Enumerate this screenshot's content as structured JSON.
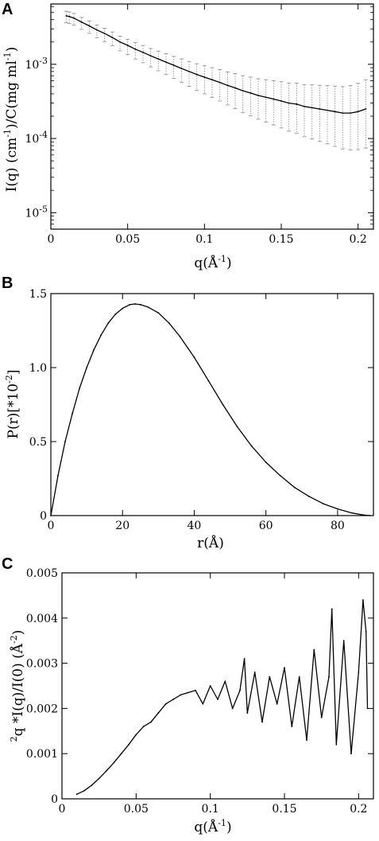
{
  "figure": {
    "panels": [
      {
        "letter": "A"
      },
      {
        "letter": "B"
      },
      {
        "letter": "C"
      }
    ]
  },
  "chart_data": [
    {
      "type": "scatter",
      "panel": "A",
      "y_scale": "log",
      "xlabel": {
        "main": "q(Å",
        "sup": "-1",
        "tail": ")"
      },
      "ylabel": {
        "p1": "I(q) (cm",
        "s1": "-1",
        "p2": ")/C(mg ml",
        "s2": "-1",
        "p3": ")"
      },
      "xlim": [
        0,
        0.21
      ],
      "ylim": [
        6e-06,
        0.0065
      ],
      "x_ticks": [
        0,
        0.05,
        0.1,
        0.15,
        0.2
      ],
      "x_tick_labels": [
        "0",
        "0.05",
        "0.1",
        "0.15",
        "0.2"
      ],
      "y_ticks": [
        1e-05,
        0.0001,
        0.001
      ],
      "y_tick_labels": [
        {
          "base": "10",
          "exp": "-5"
        },
        {
          "base": "10",
          "exp": "-4"
        },
        {
          "base": "10",
          "exp": "-3"
        }
      ],
      "series": [
        {
          "style": "line with dotted error bars",
          "error_bars": true,
          "x": [
            0.01,
            0.012,
            0.015,
            0.02,
            0.025,
            0.03,
            0.035,
            0.04,
            0.045,
            0.05,
            0.055,
            0.06,
            0.065,
            0.07,
            0.075,
            0.08,
            0.085,
            0.09,
            0.095,
            0.1,
            0.105,
            0.11,
            0.115,
            0.12,
            0.125,
            0.13,
            0.135,
            0.14,
            0.145,
            0.15,
            0.155,
            0.16,
            0.165,
            0.17,
            0.175,
            0.18,
            0.185,
            0.19,
            0.195,
            0.2,
            0.205
          ],
          "y": [
            0.0045,
            0.0044,
            0.0042,
            0.0037,
            0.0033,
            0.0029,
            0.0026,
            0.0023,
            0.002,
            0.0018,
            0.0016,
            0.00145,
            0.0013,
            0.00118,
            0.00107,
            0.00097,
            0.00088,
            0.0008,
            0.00073,
            0.00067,
            0.00062,
            0.00057,
            0.00052,
            0.00048,
            0.00044,
            0.00041,
            0.00038,
            0.00036,
            0.00034,
            0.00032,
            0.0003,
            0.00029,
            0.00027,
            0.00026,
            0.00025,
            0.00024,
            0.00023,
            0.00022,
            0.00022,
            0.00023,
            0.00025
          ]
        }
      ]
    },
    {
      "type": "line",
      "panel": "B",
      "xlabel": "r(Å)",
      "ylabel": {
        "p1": "P(r)[*10",
        "s1": "-2",
        "p2": "]"
      },
      "xlim": [
        0,
        90
      ],
      "ylim": [
        0,
        1.5
      ],
      "x_ticks": [
        0,
        20,
        40,
        60,
        80
      ],
      "x_tick_labels": [
        "0",
        "20",
        "40",
        "60",
        "80"
      ],
      "y_ticks": [
        0,
        0.5,
        1.0,
        1.5
      ],
      "y_tick_labels": [
        "0",
        "0.5",
        "1.0",
        "1.5"
      ],
      "series": [
        {
          "style": "line",
          "x": [
            0,
            2,
            4,
            6,
            8,
            10,
            12,
            14,
            16,
            18,
            20,
            22,
            23.5,
            25,
            27,
            30,
            33,
            36,
            40,
            44,
            48,
            52,
            56,
            60,
            64,
            68,
            72,
            76,
            80,
            84,
            87,
            89
          ],
          "y": [
            0,
            0.27,
            0.5,
            0.69,
            0.86,
            1.0,
            1.12,
            1.22,
            1.3,
            1.36,
            1.4,
            1.425,
            1.43,
            1.425,
            1.41,
            1.37,
            1.3,
            1.21,
            1.07,
            0.91,
            0.75,
            0.6,
            0.47,
            0.36,
            0.27,
            0.19,
            0.13,
            0.08,
            0.045,
            0.018,
            0.005,
            0
          ]
        }
      ]
    },
    {
      "type": "line",
      "panel": "C",
      "xlabel": {
        "main": "q(Å",
        "sup": "-1",
        "tail": ")"
      },
      "ylabel": {
        "s0": "2",
        "p1": "q *I(q)/I(0) (Å",
        "s1": "-2",
        "p2": ")"
      },
      "xlim": [
        0,
        0.21
      ],
      "ylim": [
        0,
        0.005
      ],
      "x_ticks": [
        0,
        0.05,
        0.1,
        0.15,
        0.2
      ],
      "x_tick_labels": [
        "0",
        "0.05",
        "0.1",
        "0.15",
        "0.2"
      ],
      "y_ticks": [
        0,
        0.001,
        0.002,
        0.003,
        0.004,
        0.005
      ],
      "y_tick_labels": [
        "0",
        "0.001",
        "0.002",
        "0.003",
        "0.004",
        "0.005"
      ],
      "series": [
        {
          "style": "line",
          "x": [
            0.01,
            0.015,
            0.02,
            0.025,
            0.03,
            0.035,
            0.04,
            0.045,
            0.05,
            0.055,
            0.06,
            0.065,
            0.07,
            0.075,
            0.08,
            0.085,
            0.09,
            0.095,
            0.1,
            0.105,
            0.11,
            0.115,
            0.12,
            0.123,
            0.125,
            0.13,
            0.135,
            0.14,
            0.145,
            0.15,
            0.155,
            0.16,
            0.165,
            0.17,
            0.175,
            0.18,
            0.182,
            0.185,
            0.19,
            0.195,
            0.2,
            0.203,
            0.205,
            0.206
          ],
          "y": [
            0.0001,
            0.00018,
            0.0003,
            0.00045,
            0.00062,
            0.0008,
            0.001,
            0.0012,
            0.00142,
            0.0016,
            0.0017,
            0.0019,
            0.0021,
            0.0022,
            0.0023,
            0.00235,
            0.0024,
            0.0021,
            0.0025,
            0.0022,
            0.0026,
            0.002,
            0.0024,
            0.0031,
            0.0019,
            0.0028,
            0.0017,
            0.0027,
            0.0021,
            0.0029,
            0.0016,
            0.0027,
            0.0013,
            0.0033,
            0.0018,
            0.0027,
            0.0042,
            0.0012,
            0.0035,
            0.001,
            0.0028,
            0.0044,
            0.0037,
            0.002
          ]
        }
      ]
    }
  ]
}
